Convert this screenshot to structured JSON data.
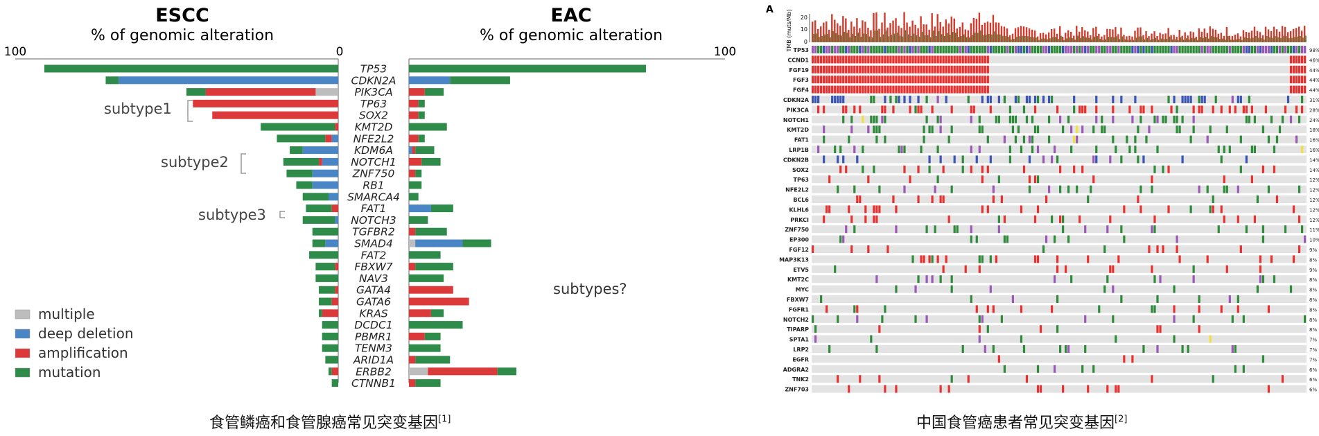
{
  "left_figure": {
    "caption": "食管鳞癌和食管腺癌常见突变基因",
    "caption_ref": "[1]",
    "escc_title": "ESCC",
    "eac_title": "EAC",
    "escc_subtitle": "% of genomic alteration",
    "eac_subtitle": "% of genomic alteration",
    "subtype_labels": [
      "subtype1",
      "subtype2",
      "subtype3"
    ],
    "eac_subtypes_label": "subtypes?",
    "legend": [
      {
        "label": "multiple",
        "color": "#bdbdbd"
      },
      {
        "label": "deep deletion",
        "color": "#4a86c5"
      },
      {
        "label": "amplification",
        "color": "#dc3a3a"
      },
      {
        "label": "mutation",
        "color": "#2e8b4a"
      }
    ]
  },
  "right_figure": {
    "panel_letter": "A",
    "caption": "中国食管癌患者常见突变基因",
    "caption_ref": "[2]",
    "tmb_axis_label": "TMB (muts/Mb)",
    "tmb_ticks": [
      "20",
      "10",
      "0"
    ]
  },
  "chart_data": [
    {
      "type": "bar",
      "orientation": "horizontal",
      "stacked": true,
      "mirrored": true,
      "title_left": "ESCC",
      "title_right": "EAC",
      "xlabel": "% of genomic alteration",
      "xlim": [
        0,
        100
      ],
      "x_ticks": [
        "100",
        "0",
        "100"
      ],
      "categories": [
        "TP53",
        "CDKN2A",
        "PIK3CA",
        "TP63",
        "SOX2",
        "KMT2D",
        "NFE2L2",
        "KDM6A",
        "NOTCH1",
        "ZNF750",
        "RB1",
        "SMARCA4",
        "FAT1",
        "NOTCH3",
        "TGFBR2",
        "SMAD4",
        "FAT2",
        "FBXW7",
        "NAV3",
        "GATA4",
        "GATA6",
        "KRAS",
        "DCDC1",
        "PBMR1",
        "TENM3",
        "ARID1A",
        "ERBB2",
        "CTNNB1"
      ],
      "stack_order": [
        "multiple",
        "deep deletion",
        "amplification",
        "mutation"
      ],
      "escc": {
        "multiple": [
          0,
          0,
          7,
          0,
          0,
          0,
          0,
          0,
          0,
          0,
          0,
          0,
          0,
          0,
          0,
          0,
          0,
          0,
          0,
          0,
          0,
          0,
          0,
          0,
          0,
          0,
          0,
          0
        ],
        "deep deletion": [
          0,
          68,
          0,
          0,
          0,
          0,
          2,
          11,
          5,
          8,
          8,
          3,
          0,
          1,
          0,
          4,
          0,
          0,
          0,
          0,
          0,
          0,
          0,
          0,
          0,
          0,
          0,
          0
        ],
        "amplification": [
          0,
          0,
          34,
          45,
          39,
          1,
          2,
          0,
          1,
          0,
          0,
          0,
          2,
          0,
          0,
          0,
          0,
          1,
          0,
          1,
          2,
          5,
          0,
          0,
          0,
          0,
          2,
          0
        ],
        "mutation": [
          91,
          4,
          6,
          0,
          0,
          23,
          15,
          4,
          11,
          8,
          5,
          8,
          8,
          10,
          8,
          4,
          9,
          6,
          7,
          5,
          4,
          1,
          5,
          5,
          5,
          4,
          1,
          2
        ]
      },
      "eac": {
        "multiple": [
          0,
          0,
          0,
          0,
          0,
          0,
          0,
          0,
          0,
          0,
          0,
          0,
          0,
          0,
          0,
          2,
          0,
          0,
          0,
          0,
          0,
          0,
          0,
          0,
          0,
          0,
          6,
          0
        ],
        "deep deletion": [
          0,
          13,
          0,
          0,
          0,
          0,
          0,
          1,
          0,
          0,
          0,
          0,
          7,
          0,
          0,
          15,
          0,
          0,
          0,
          0,
          0,
          0,
          0,
          0,
          0,
          0,
          0,
          0
        ],
        "amplification": [
          0,
          0,
          5,
          3,
          3,
          0,
          3,
          1,
          4,
          2,
          0,
          0,
          0,
          0,
          2,
          0,
          0,
          2,
          0,
          14,
          19,
          7,
          0,
          5,
          0,
          2,
          22,
          2
        ],
        "mutation": [
          75,
          19,
          6,
          2,
          2,
          12,
          2,
          6,
          6,
          2,
          4,
          3,
          7,
          6,
          10,
          9,
          10,
          12,
          11,
          0,
          0,
          4,
          17,
          5,
          10,
          11,
          6,
          8
        ]
      }
    },
    {
      "type": "heatmap",
      "subtype": "oncoprint",
      "tmb_ylabel": "TMB (muts/Mb)",
      "tmb_ylim": [
        0,
        20
      ],
      "genes": [
        "TP53",
        "CCND1",
        "FGF19",
        "FGF3",
        "FGF4",
        "CDKN2A",
        "PIK3CA",
        "NOTCH1",
        "KMT2D",
        "FAT1",
        "LRP1B",
        "CDKN2B",
        "SOX2",
        "TP63",
        "NFE2L2",
        "BCL6",
        "KLHL6",
        "PRKCI",
        "ZNF750",
        "EP300",
        "FGF12",
        "MAP3K13",
        "ETV5",
        "KMT2C",
        "MYC",
        "FBXW7",
        "FGFR1",
        "NOTCH2",
        "TIPARP",
        "SPTA1",
        "LRP2",
        "EGFR",
        "ADGRA2",
        "TNK2",
        "ZNF703"
      ],
      "alteration_percent": [
        "98%",
        "46%",
        "44%",
        "44%",
        "44%",
        "31%",
        "28%",
        "24%",
        "18%",
        "16%",
        "16%",
        "14%",
        "14%",
        "12%",
        "12%",
        "12%",
        "12%",
        "12%",
        "11%",
        "10%",
        "9%",
        "8%",
        "9%",
        "8%",
        "8%",
        "8%",
        "8%",
        "8%",
        "8%",
        "7%",
        "7%",
        "7%",
        "6%",
        "6%",
        "6%"
      ],
      "alteration_colors": {
        "amplification": "#e8312f",
        "mutation": "#2e8b3a",
        "deletion": "#3a55b4",
        "truncating": "#9b59b6",
        "other": "#f0e040",
        "background": "#e3e3e3"
      }
    }
  ]
}
